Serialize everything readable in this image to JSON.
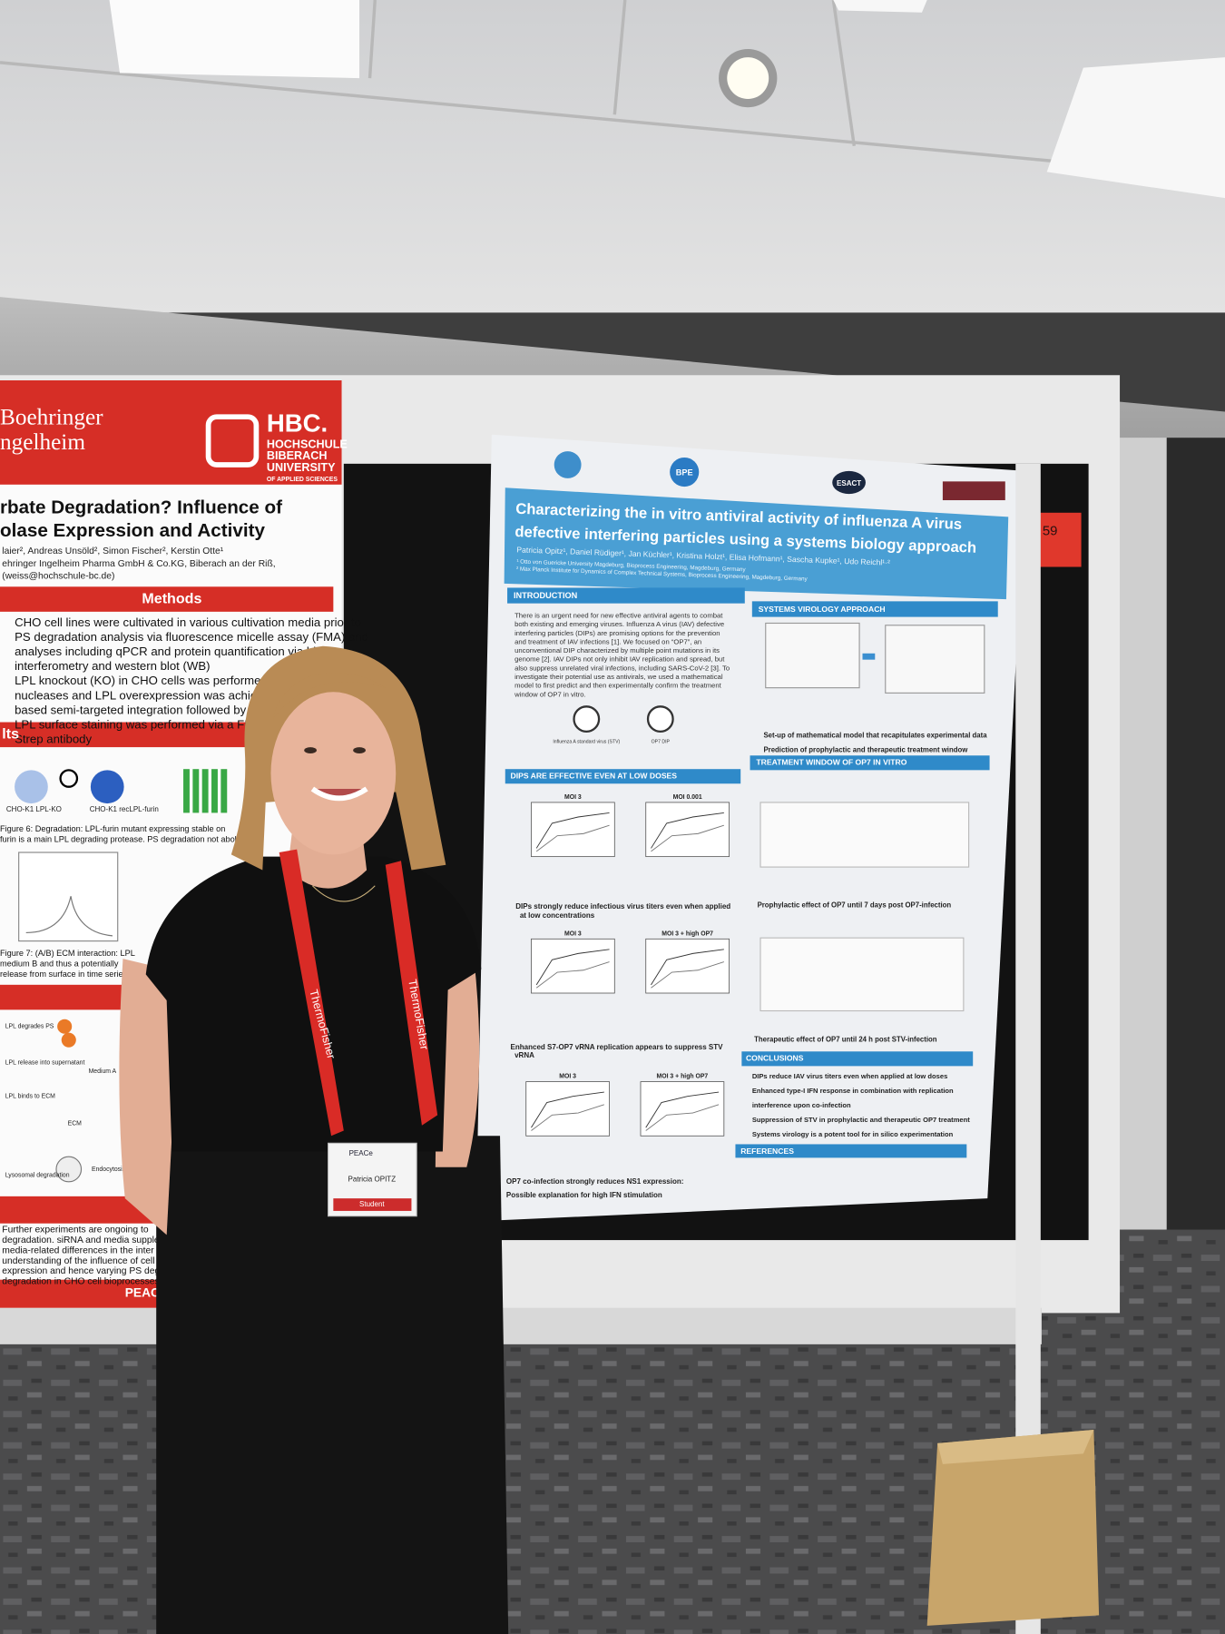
{
  "left_poster": {
    "logo_company": [
      "Boehringer",
      "ngelheim"
    ],
    "logo_school": [
      "HBC.",
      "HOCHSCHULE",
      "BIBERACH",
      "UNIVERSITY",
      "OF APPLIED SCIENCES"
    ],
    "title": [
      "rbate Degradation? Influence of",
      "olase Expression and Activity"
    ],
    "authors": [
      "laier², Andreas Unsöld², Simon Fischer², Kerstin Otte¹",
      "ehringer Ingelheim Pharma GmbH & Co.KG, Biberach an der Riß,",
      "(weiss@hochschule-bc.de)"
    ],
    "methods_heading": "Methods",
    "methods": [
      "CHO cell lines were cultivated in various cultivation media prior to",
      "PS degradation analysis via fluorescence micelle assay (FMA) and",
      "analyses including qPCR and protein quantification via biolayer",
      "interferometry and western blot (WB)",
      "LPL knockout (KO) in CHO cells was performed via zinc",
      "nucleases and LPL overexpression was achieved by trans",
      "based semi-targeted integration followed by GS selection",
      "LPL surface staining was performed via a FITC-con",
      "Strep antibody"
    ],
    "results_heading": "lts",
    "figure_labels": [
      "CHO-K1 LPL-KO",
      "CHO-K1 recLPL-furin"
    ],
    "captions": [
      "Figure 6: Degradation: LPL-furin mutant expressing stable on",
      "furin is a main LPL degrading protease. PS degradation not abolish",
      "Figure 7: (A/B) ECM interaction: LPL",
      "medium B and thus a potentially",
      "release from surface in time series a"
    ],
    "diagram_labels": [
      "LPL degrades PS",
      "LPL release into supernatant",
      "LPL binds to ECM",
      "Medium A",
      "ECM",
      "Lysosomal degradation",
      "Endocytosis"
    ],
    "outlook": [
      "Further experiments are ongoing to",
      "degradation. siRNA and media supple",
      "media-related differences in the inter",
      "understanding of the influence of cell cu",
      "expression and hence varying PS degrad",
      "degradation in CHO cell bioprocesses."
    ],
    "footer": "PEACe"
  },
  "right_poster": {
    "logos": [
      "BPE",
      "ESACT"
    ],
    "title": [
      "Characterizing the in vitro antiviral activity of influenza A virus",
      "defective interfering particles using a systems biology approach"
    ],
    "authors": "Patricia Opitz¹, Daniel Rüdiger¹, Jan Küchler¹, Kristina Holzt¹, Elisa Hofmann¹, Sascha Kupke¹, Udo Reichl¹·²",
    "affiliations": [
      "¹ Otto von Guericke University Magdeburg, Bioprocess Engineering, Magdeburg, Germany",
      "² Max Planck Institute for Dynamics of Complex Technical Systems, Bioprocess Engineering, Magdeburg, Germany"
    ],
    "intro_heading": "INTRODUCTION",
    "intro": [
      "There is an urgent need for new effective antiviral agents to combat",
      "both existing and emerging viruses. Influenza A virus (IAV) defective",
      "interfering particles (DIPs) are promising options for the prevention",
      "and treatment of IAV infections [1]. We focused on “OP7”, an",
      "unconventional DIP characterized by multiple point mutations in its",
      "genome [2]. IAV DIPs not only inhibit IAV replication and spread, but",
      "also suppress unrelated viral infections, including SARS-CoV-2 [3]. To",
      "investigate their potential use as antivirals, we used a mathematical",
      "model to first predict and then experimentally confirm the treatment",
      "window of OP7 in vitro."
    ],
    "virus_labels": [
      "Influenza A standard virus (STV)",
      "OP7 DIP"
    ],
    "dips_heading": "DIPS ARE EFFECTIVE EVEN AT LOW DOSES",
    "charts": [
      "MOI 3",
      "MOI 0.001",
      "MOI 3",
      "MOI 3 + high OP7",
      "MOI 3",
      "MOI 3 + high OP7"
    ],
    "left_bullets": [
      "DIPs strongly reduce infectious virus titers even when applied",
      "at low concentrations",
      "Enhanced S7-OP7 vRNA replication appears to suppress STV",
      "vRNA",
      "OP7 co-infection strongly reduces NS1 expression:",
      "Possible explanation for high IFN stimulation"
    ],
    "systems_heading": "SYSTEMS VIROLOGY APPROACH",
    "systems_bullets": [
      "Set-up of mathematical model that recapitulates experimental data",
      "Prediction of prophylactic and therapeutic treatment window"
    ],
    "treatment_heading": "TREATMENT WINDOW OF OP7 IN VITRO",
    "treatment_bullets": [
      "Prophylactic effect of OP7 until 7 days post OP7-infection",
      "Therapeutic effect of OP7 until 24 h post STV-infection"
    ],
    "conclusions_heading": "CONCLUSIONS",
    "conclusions": [
      "DIPs reduce IAV virus titers even when applied at low doses",
      "Enhanced type-I IFN response in combination with replication",
      "interference upon co-infection",
      "Suppression of STV in prophylactic and therapeutic OP7 treatment",
      "Systems virology is a potent tool for in silico experimentation"
    ],
    "references_heading": "REFERENCES"
  },
  "board_number": "59",
  "lanyard": "ThermoFisher",
  "badge": {
    "event": "PEACe",
    "name": "Patricia OPITZ",
    "role": "Student"
  }
}
